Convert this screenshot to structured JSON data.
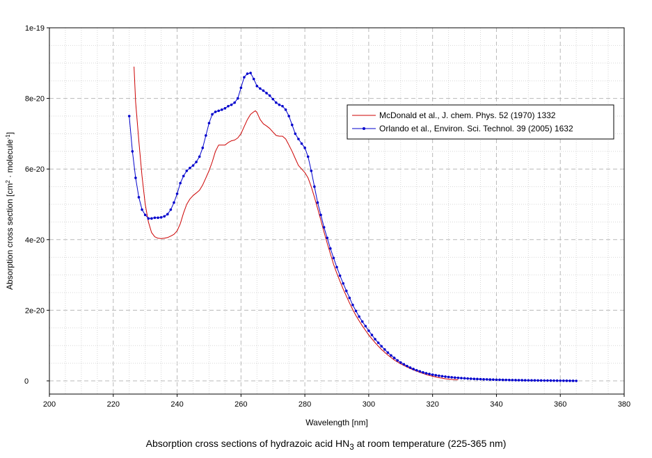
{
  "caption": {
    "text": "Absorption cross sections of hydrazoic acid HN",
    "subscript": "3",
    "suffix": " at room temperature (225-365 nm)"
  },
  "chart_data": {
    "type": "line",
    "xlabel": "Wavelength [nm]",
    "ylabel": {
      "pre": "Absorption cross section [cm",
      "sup1": "2",
      "mid": " · molecule",
      "sup2": "-1",
      "post": "]"
    },
    "xlim": [
      200,
      380
    ],
    "ylim": [
      0,
      1e-19
    ],
    "x_ticks": [
      "200",
      "220",
      "240",
      "260",
      "280",
      "300",
      "320",
      "340",
      "360",
      "380"
    ],
    "y_ticks": [
      "0",
      "2e-20",
      "4e-20",
      "6e-20",
      "8e-20",
      "1e-19"
    ],
    "grid": true,
    "legend_position": "top-right",
    "colors": {
      "series1": "#cc0000",
      "series2": "#0000cc"
    },
    "series": [
      {
        "name": "McDonald et al., J. chem. Phys. 52 (1970) 1332",
        "marker": "none",
        "x": [
          226.5,
          227,
          228,
          229,
          230,
          231,
          232,
          233,
          234,
          235,
          236,
          237,
          238,
          239,
          240,
          241,
          242,
          243,
          244,
          245,
          246,
          247,
          248,
          249,
          250,
          251,
          252,
          253,
          254,
          255,
          256,
          257,
          258,
          259,
          260,
          261,
          262,
          263,
          264,
          264.5,
          265,
          266,
          267,
          268,
          269,
          270,
          271,
          272,
          273,
          274,
          275,
          276,
          277,
          278,
          279,
          280,
          281,
          282,
          283,
          284,
          285,
          286,
          287,
          288,
          289,
          290,
          291,
          292,
          293,
          294,
          295,
          296,
          297,
          298,
          299,
          300,
          302,
          304,
          306,
          308,
          310,
          312,
          314,
          316,
          318,
          320,
          322,
          324,
          326,
          328
        ],
        "y": [
          8.9e-20,
          7.9e-20,
          6.8e-20,
          5.8e-20,
          5e-20,
          4.5e-20,
          4.2e-20,
          4.08e-20,
          4.04e-20,
          4.03e-20,
          4.04e-20,
          4.06e-20,
          4.1e-20,
          4.15e-20,
          4.25e-20,
          4.45e-20,
          4.75e-20,
          5e-20,
          5.15e-20,
          5.25e-20,
          5.32e-20,
          5.4e-20,
          5.55e-20,
          5.75e-20,
          5.95e-20,
          6.2e-20,
          6.5e-20,
          6.68e-20,
          6.68e-20,
          6.68e-20,
          6.75e-20,
          6.8e-20,
          6.82e-20,
          6.88e-20,
          7e-20,
          7.2e-20,
          7.4e-20,
          7.55e-20,
          7.62e-20,
          7.65e-20,
          7.6e-20,
          7.4e-20,
          7.28e-20,
          7.22e-20,
          7.15e-20,
          7.05e-20,
          6.95e-20,
          6.93e-20,
          6.93e-20,
          6.85e-20,
          6.68e-20,
          6.5e-20,
          6.3e-20,
          6.1e-20,
          6e-20,
          5.9e-20,
          5.75e-20,
          5.5e-20,
          5.2e-20,
          4.88e-20,
          4.55e-20,
          4.22e-20,
          3.9e-20,
          3.6e-20,
          3.3e-20,
          3.05e-20,
          2.82e-20,
          2.6e-20,
          2.4e-20,
          2.2e-20,
          2.02e-20,
          1.85e-20,
          1.7e-20,
          1.56e-20,
          1.43e-20,
          1.3e-20,
          1.08e-20,
          8.9e-21,
          7.3e-21,
          5.9e-21,
          4.8e-21,
          3.9e-21,
          3.1e-21,
          2.4e-21,
          1.8e-21,
          1.3e-21,
          9e-22,
          6e-22,
          4e-22,
          3e-22
        ]
      },
      {
        "name": "Orlando et al., Environ. Sci. Technol. 39 (2005) 1632",
        "marker": "circle",
        "x": [
          225,
          226,
          227,
          228,
          229,
          230,
          231,
          232,
          233,
          234,
          235,
          236,
          237,
          238,
          239,
          240,
          241,
          242,
          243,
          244,
          245,
          246,
          247,
          248,
          249,
          250,
          251,
          252,
          253,
          254,
          255,
          256,
          257,
          258,
          259,
          260,
          261,
          262,
          263,
          264,
          265,
          266,
          267,
          268,
          269,
          270,
          271,
          272,
          273,
          274,
          275,
          276,
          277,
          278,
          279,
          280,
          281,
          282,
          283,
          284,
          285,
          286,
          287,
          288,
          289,
          290,
          291,
          292,
          293,
          294,
          295,
          296,
          297,
          298,
          299,
          300,
          301,
          302,
          303,
          304,
          305,
          306,
          307,
          308,
          309,
          310,
          311,
          312,
          313,
          314,
          315,
          316,
          317,
          318,
          319,
          320,
          321,
          322,
          323,
          324,
          325,
          326,
          327,
          328,
          329,
          330,
          331,
          332,
          333,
          334,
          335,
          336,
          337,
          338,
          339,
          340,
          341,
          342,
          343,
          344,
          345,
          346,
          347,
          348,
          349,
          350,
          351,
          352,
          353,
          354,
          355,
          356,
          357,
          358,
          359,
          360,
          361,
          362,
          363,
          364,
          365
        ],
        "y": [
          7.5e-20,
          6.5e-20,
          5.75e-20,
          5.2e-20,
          4.85e-20,
          4.7e-20,
          4.6e-20,
          4.6e-20,
          4.62e-20,
          4.62e-20,
          4.63e-20,
          4.66e-20,
          4.72e-20,
          4.85e-20,
          5.05e-20,
          5.3e-20,
          5.6e-20,
          5.8e-20,
          5.95e-20,
          6.03e-20,
          6.1e-20,
          6.2e-20,
          6.35e-20,
          6.6e-20,
          6.95e-20,
          7.3e-20,
          7.55e-20,
          7.62e-20,
          7.65e-20,
          7.68e-20,
          7.72e-20,
          7.78e-20,
          7.82e-20,
          7.88e-20,
          8e-20,
          8.3e-20,
          8.6e-20,
          8.7e-20,
          8.72e-20,
          8.55e-20,
          8.35e-20,
          8.28e-20,
          8.22e-20,
          8.15e-20,
          8.08e-20,
          7.98e-20,
          7.88e-20,
          7.82e-20,
          7.78e-20,
          7.68e-20,
          7.5e-20,
          7.25e-20,
          7e-20,
          6.85e-20,
          6.72e-20,
          6.6e-20,
          6.35e-20,
          5.95e-20,
          5.5e-20,
          5.05e-20,
          4.7e-20,
          4.35e-20,
          4.05e-20,
          3.75e-20,
          3.48e-20,
          3.22e-20,
          2.98e-20,
          2.76e-20,
          2.55e-20,
          2.35e-20,
          2.15e-20,
          1.98e-20,
          1.82e-20,
          1.68e-20,
          1.55e-20,
          1.42e-20,
          1.3e-20,
          1.18e-20,
          1.08e-20,
          9.8e-21,
          8.9e-21,
          8e-21,
          7.2e-21,
          6.5e-21,
          5.8e-21,
          5.2e-21,
          4.7e-21,
          4.2e-21,
          3.75e-21,
          3.35e-21,
          3e-21,
          2.7e-21,
          2.4e-21,
          2.15e-21,
          1.95e-21,
          1.75e-21,
          1.6e-21,
          1.45e-21,
          1.32e-21,
          1.2e-21,
          1.1e-21,
          1e-21,
          9.2e-22,
          8.5e-22,
          7.8e-22,
          7.2e-22,
          6.6e-22,
          6.1e-22,
          5.6e-22,
          5.2e-22,
          4.8e-22,
          4.4e-22,
          4.1e-22,
          3.8e-22,
          3.5e-22,
          3.2e-22,
          3e-22,
          2.8e-22,
          2.6e-22,
          2.4e-22,
          2.2e-22,
          2e-22,
          1.9e-22,
          1.75e-22,
          1.6e-22,
          1.5e-22,
          1.4e-22,
          1.3e-22,
          1.2e-22,
          1.1e-22,
          1e-22,
          9e-23,
          8e-23,
          7e-23,
          6e-23,
          5e-23,
          4e-23,
          3e-23,
          2e-23,
          1e-23,
          0
        ]
      }
    ]
  }
}
